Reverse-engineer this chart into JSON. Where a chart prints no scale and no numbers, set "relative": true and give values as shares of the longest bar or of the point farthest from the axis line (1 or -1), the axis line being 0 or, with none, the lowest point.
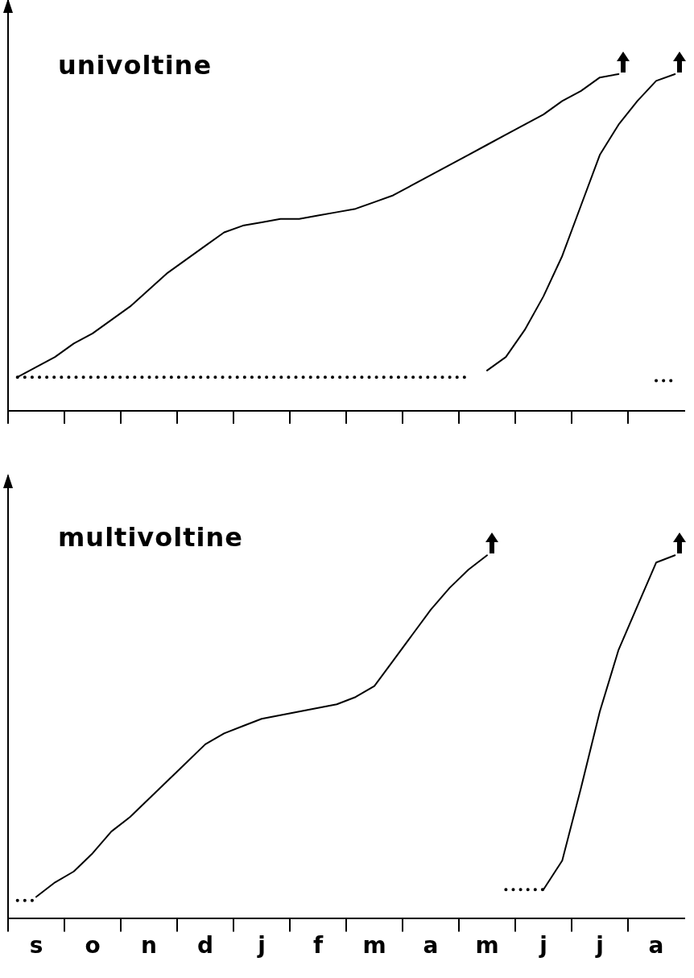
{
  "chart_data": [
    {
      "type": "line",
      "title": "univoltine",
      "relative": true,
      "categories": [
        null,
        null,
        null,
        null,
        null,
        null,
        null,
        null,
        null,
        null,
        null,
        null,
        null,
        null,
        null,
        null,
        null,
        null,
        null,
        null,
        null,
        null,
        null,
        null,
        null,
        null,
        null,
        null,
        null,
        null,
        null,
        null,
        null,
        null,
        null,
        null
      ],
      "tick_labels": false,
      "legend": false,
      "grid": false,
      "marker": "none",
      "series": [
        {
          "color": "#000000",
          "values": [
            0.1,
            0.13,
            0.16,
            0.2,
            0.23,
            0.27,
            0.31,
            0.36,
            0.41,
            0.45,
            0.49,
            0.53,
            0.55,
            0.56,
            0.57,
            0.57,
            0.58,
            0.59,
            0.6,
            0.62,
            0.64,
            0.67,
            0.7,
            0.73,
            0.76,
            0.79,
            0.82,
            0.85,
            0.88,
            0.92,
            0.95,
            0.99,
            1.0,
            null,
            null,
            null
          ]
        },
        {
          "color": "#000000",
          "values": [
            null,
            null,
            null,
            null,
            null,
            null,
            null,
            null,
            null,
            null,
            null,
            null,
            null,
            null,
            null,
            null,
            null,
            null,
            null,
            null,
            null,
            null,
            null,
            null,
            null,
            0.12,
            0.16,
            0.24,
            0.34,
            0.46,
            0.61,
            0.76,
            0.85,
            0.92,
            0.98,
            1.0
          ]
        },
        {
          "color": "#000000",
          "line_style": "dotted",
          "values": [
            0.1,
            0.1,
            0.1,
            0.1,
            0.1,
            0.1,
            0.1,
            0.1,
            0.1,
            0.1,
            0.1,
            0.1,
            0.1,
            0.1,
            0.1,
            0.1,
            0.1,
            0.1,
            0.1,
            0.1,
            0.1,
            0.1,
            0.1,
            0.1,
            0.1,
            null,
            null,
            null,
            null,
            null,
            null,
            null,
            null,
            null,
            null,
            null
          ]
        },
        {
          "color": "#000000",
          "line_style": "dotted",
          "values": [
            null,
            null,
            null,
            null,
            null,
            null,
            null,
            null,
            null,
            null,
            null,
            null,
            null,
            null,
            null,
            null,
            null,
            null,
            null,
            null,
            null,
            null,
            null,
            null,
            null,
            null,
            null,
            null,
            null,
            null,
            null,
            null,
            null,
            null,
            0.09,
            0.09
          ]
        }
      ]
    },
    {
      "type": "line",
      "title": "multivoltine",
      "relative": true,
      "categories": [
        null,
        "s",
        null,
        null,
        "o",
        null,
        null,
        "n",
        null,
        null,
        "d",
        null,
        null,
        "j",
        null,
        null,
        "f",
        null,
        null,
        "m",
        null,
        null,
        "a",
        null,
        null,
        "m",
        null,
        null,
        "j",
        null,
        null,
        "j",
        null,
        null,
        "a",
        null
      ],
      "tick_labels": "x",
      "legend": false,
      "grid": false,
      "marker": "none",
      "series": [
        {
          "color": "#000000",
          "values": [
            null,
            0.06,
            0.1,
            0.13,
            0.18,
            0.24,
            0.28,
            0.33,
            0.38,
            0.43,
            0.48,
            0.51,
            0.53,
            0.55,
            0.56,
            0.57,
            0.58,
            0.59,
            0.61,
            0.64,
            0.71,
            0.78,
            0.85,
            0.91,
            0.96,
            1.0,
            null,
            null,
            null,
            null,
            null,
            null,
            null,
            null,
            null,
            null
          ]
        },
        {
          "color": "#000000",
          "values": [
            null,
            null,
            null,
            null,
            null,
            null,
            null,
            null,
            null,
            null,
            null,
            null,
            null,
            null,
            null,
            null,
            null,
            null,
            null,
            null,
            null,
            null,
            null,
            null,
            null,
            null,
            null,
            null,
            0.08,
            0.16,
            0.36,
            0.57,
            0.74,
            0.86,
            0.98,
            1.0
          ]
        },
        {
          "color": "#000000",
          "line_style": "dotted",
          "values": [
            0.05,
            0.05,
            null,
            null,
            null,
            null,
            null,
            null,
            null,
            null,
            null,
            null,
            null,
            null,
            null,
            null,
            null,
            null,
            null,
            null,
            null,
            null,
            null,
            null,
            null,
            null,
            null,
            null,
            null,
            null,
            null,
            null,
            null,
            null,
            null,
            null
          ]
        },
        {
          "color": "#000000",
          "line_style": "dotted",
          "values": [
            null,
            null,
            null,
            null,
            null,
            null,
            null,
            null,
            null,
            null,
            null,
            null,
            null,
            null,
            null,
            null,
            null,
            null,
            null,
            null,
            null,
            null,
            null,
            null,
            null,
            null,
            0.08,
            0.08,
            0.08,
            null,
            null,
            null,
            null,
            null,
            null,
            null
          ]
        }
      ]
    }
  ]
}
